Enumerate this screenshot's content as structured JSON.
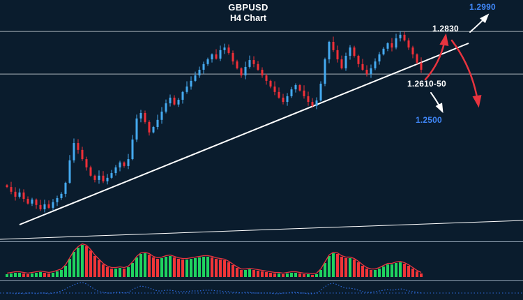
{
  "title": {
    "symbol": "GBPUSD",
    "timeframe": "H4 Chart"
  },
  "price_labels": {
    "target_up": {
      "text": "1.2990",
      "color": "#3f86f6"
    },
    "resistance": {
      "text": "1.2830",
      "color": "#ffffff"
    },
    "support_zone": {
      "text": "1.2610-50",
      "color": "#ffffff"
    },
    "target_down": {
      "text": "1.2500",
      "color": "#3f86f6"
    }
  },
  "colors": {
    "background": "#0a1c2d",
    "bullish_candle": "#45aaf0",
    "bearish_candle": "#f02f38",
    "trendline": "#ffffff",
    "level_line": "#c6cfd6",
    "histogram_up": "#1fd35f",
    "histogram_down": "#f03538",
    "signal_line": "#e8343f",
    "lower_line": "#2d6bdd",
    "panel_divider": "#93a4b5",
    "projection_arrow": "#e8343f",
    "label_blue": "#3f86f6"
  },
  "chart_data": {
    "type": "candlestick",
    "title": "GBPUSD H4 Chart",
    "symbol": "GBPUSD",
    "timeframe": "H4",
    "grid": false,
    "ylim": [
      1.1945,
      1.2963
    ],
    "key_levels": {
      "upside_target": 1.299,
      "resistance": 1.283,
      "support_zone": [
        1.261,
        1.265
      ],
      "downside_target": 1.25
    },
    "closes": [
      1.2172,
      1.2152,
      1.2131,
      1.2149,
      1.2122,
      1.2102,
      1.2119,
      1.2096,
      1.2078,
      1.2099,
      1.2084,
      1.2108,
      1.2125,
      1.2143,
      1.219,
      1.2285,
      1.2358,
      1.2329,
      1.229,
      1.2255,
      1.222,
      1.2202,
      1.222,
      1.2196,
      1.2211,
      1.2231,
      1.2255,
      1.2276,
      1.2261,
      1.229,
      1.2373,
      1.2462,
      1.2485,
      1.2447,
      1.2403,
      1.2426,
      1.2456,
      1.2491,
      1.2526,
      1.255,
      1.2521,
      1.2541,
      1.2574,
      1.2597,
      1.2621,
      1.2644,
      1.2668,
      1.2692,
      1.2712,
      1.2733,
      1.2715,
      1.2751,
      1.2762,
      1.2739,
      1.2703,
      1.2674,
      1.2644,
      1.268,
      1.2709,
      1.2692,
      1.2668,
      1.2644,
      1.2621,
      1.2597,
      1.2574,
      1.255,
      1.2532,
      1.2556,
      1.2585,
      1.2603,
      1.258,
      1.2556,
      1.2532,
      1.2515,
      1.2538,
      1.2609,
      1.2712,
      1.2786,
      1.2751,
      1.2712,
      1.2674,
      1.2727,
      1.2762,
      1.2727,
      1.2692,
      1.2668,
      1.265,
      1.2674,
      1.2703,
      1.2733,
      1.2757,
      1.278,
      1.2762,
      1.2801,
      1.2816,
      1.2792,
      1.2762,
      1.2733,
      1.2698,
      1.2668
    ],
    "level_lines": [
      {
        "price": 1.283
      },
      {
        "price": 1.265
      }
    ],
    "trendlines": [
      {
        "name": "ascending-support",
        "from": [
          28,
          322
        ],
        "to": [
          672,
          62
        ],
        "width": 2
      },
      {
        "name": "lower-trendline",
        "from": [
          0,
          343
        ],
        "to": [
          750,
          316
        ],
        "width": 1
      }
    ],
    "arrows": [
      {
        "name": "projection-up",
        "color": "#e8343f",
        "width": 2.5,
        "from": [
          610,
          114
        ],
        "curve": [
          633,
          88
        ],
        "to": [
          639,
          52
        ]
      },
      {
        "name": "projection-down",
        "color": "#e8343f",
        "width": 2.5,
        "from": [
          648,
          58
        ],
        "curve": [
          678,
          98
        ],
        "to": [
          686,
          150
        ]
      },
      {
        "name": "to-upside-target",
        "color": "#ffffff",
        "width": 2,
        "from": [
          674,
          46
        ],
        "curve": [
          689,
          33
        ],
        "to": [
          699,
          22
        ]
      },
      {
        "name": "to-downside-target",
        "color": "#ffffff",
        "width": 2,
        "from": [
          618,
          133
        ],
        "curve": [
          628,
          147
        ],
        "to": [
          634,
          159
        ]
      }
    ],
    "oscillator": {
      "type": "histogram",
      "values": [
        4,
        5,
        6,
        6,
        5,
        4,
        5,
        6,
        7,
        6,
        5,
        6,
        8,
        10,
        16,
        26,
        36,
        42,
        46,
        44,
        38,
        30,
        24,
        18,
        14,
        12,
        12,
        13,
        12,
        14,
        20,
        28,
        33,
        34,
        32,
        28,
        26,
        27,
        29,
        30,
        28,
        26,
        25,
        25,
        26,
        27,
        28,
        29,
        29,
        28,
        26,
        25,
        24,
        21,
        17,
        13,
        10,
        10,
        11,
        10,
        9,
        8,
        7,
        6,
        5,
        5,
        4,
        5,
        6,
        6,
        5,
        4,
        4,
        3,
        4,
        10,
        20,
        30,
        34,
        33,
        29,
        27,
        27,
        25,
        21,
        16,
        12,
        10,
        10,
        12,
        15,
        18,
        18,
        20,
        21,
        19,
        16,
        12,
        8,
        5
      ]
    },
    "lower_indicator": {
      "type": "dotted-line",
      "level": 3,
      "values": [
        3,
        3,
        2,
        3,
        2,
        3,
        3,
        2,
        3,
        3,
        2,
        3,
        4,
        6,
        9,
        12,
        15,
        17,
        18,
        16,
        12,
        8,
        5,
        4,
        3,
        3,
        4,
        4,
        3,
        4,
        8,
        11,
        13,
        12,
        10,
        8,
        6,
        6,
        7,
        7,
        6,
        5,
        5,
        5,
        6,
        6,
        6,
        7,
        7,
        7,
        6,
        6,
        5,
        5,
        4,
        4,
        3,
        4,
        4,
        3,
        3,
        3,
        3,
        3,
        2,
        2,
        3,
        3,
        4,
        4,
        3,
        3,
        2,
        2,
        3,
        7,
        12,
        16,
        17,
        15,
        12,
        10,
        10,
        9,
        7,
        5,
        4,
        4,
        5,
        6,
        7,
        8,
        7,
        8,
        9,
        8,
        6,
        5,
        4,
        3
      ]
    }
  }
}
